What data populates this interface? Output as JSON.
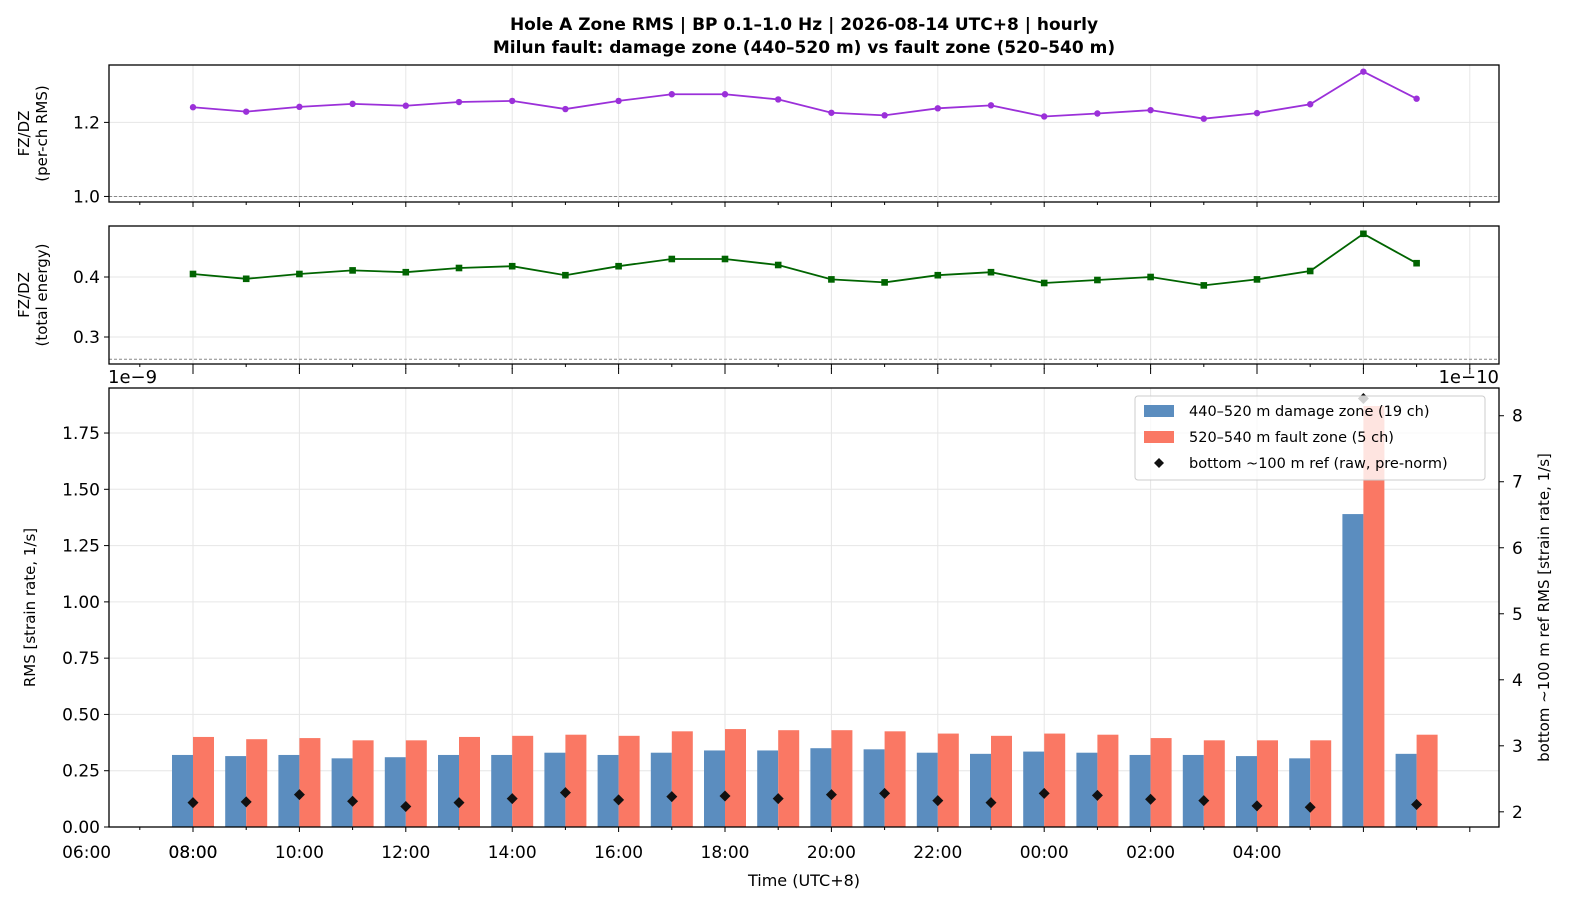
{
  "title": {
    "line1": "Hole A Zone RMS  |  BP 0.1–1.0 Hz  |  2026-08-14 UTC+8  |  hourly",
    "line2": "Milun fault: damage zone (440–520 m) vs fault zone (520–540 m)"
  },
  "chart_data": [
    {
      "type": "line",
      "ylabel": [
        "FZ/DZ",
        "(per-ch RMS)"
      ],
      "ylim": [
        0.985,
        1.355
      ],
      "yticks": [
        1.0,
        1.2
      ],
      "ytick_labels": [
        "1.0",
        "1.2"
      ],
      "reference_line": 1.0,
      "color": "#9b30d9",
      "marker": "circle",
      "x": [
        "08:00",
        "09:00",
        "10:00",
        "11:00",
        "12:00",
        "13:00",
        "14:00",
        "15:00",
        "16:00",
        "17:00",
        "18:00",
        "19:00",
        "20:00",
        "21:00",
        "22:00",
        "23:00",
        "00:00",
        "01:00",
        "02:00",
        "03:00",
        "04:00",
        "05:00",
        "06:00",
        "07:00"
      ],
      "values": [
        1.241,
        1.229,
        1.242,
        1.25,
        1.245,
        1.255,
        1.258,
        1.236,
        1.258,
        1.276,
        1.276,
        1.262,
        1.226,
        1.219,
        1.238,
        1.246,
        1.216,
        1.224,
        1.233,
        1.21,
        1.225,
        1.249,
        1.337,
        1.264
      ]
    },
    {
      "type": "line",
      "ylabel": [
        "FZ/DZ",
        "(total energy)"
      ],
      "ylim": [
        0.255,
        0.485
      ],
      "yticks": [
        0.3,
        0.4
      ],
      "ytick_labels": [
        "0.3",
        "0.4"
      ],
      "reference_line": 0.263,
      "color": "#006400",
      "marker": "square",
      "x": [
        "08:00",
        "09:00",
        "10:00",
        "11:00",
        "12:00",
        "13:00",
        "14:00",
        "15:00",
        "16:00",
        "17:00",
        "18:00",
        "19:00",
        "20:00",
        "21:00",
        "22:00",
        "23:00",
        "00:00",
        "01:00",
        "02:00",
        "03:00",
        "04:00",
        "05:00",
        "06:00",
        "07:00"
      ],
      "values": [
        0.405,
        0.397,
        0.405,
        0.411,
        0.408,
        0.415,
        0.418,
        0.403,
        0.418,
        0.43,
        0.43,
        0.42,
        0.396,
        0.391,
        0.403,
        0.408,
        0.39,
        0.395,
        0.4,
        0.386,
        0.396,
        0.41,
        0.472,
        0.423
      ]
    },
    {
      "type": "bar",
      "xlabel": "Time (UTC+8)",
      "ylabel": "RMS  [strain rate, 1/s]",
      "ylabel_right": "bottom ~100 m ref RMS  [strain rate, 1/s]",
      "offset_left": "1e−9",
      "offset_right": "1e−10",
      "ylim": [
        0,
        1.95
      ],
      "ylim_right": [
        1.77,
        8.42
      ],
      "yticks": [
        0,
        0.25,
        0.5,
        0.75,
        1.0,
        1.25,
        1.5,
        1.75
      ],
      "ytick_labels": [
        "0.00",
        "0.25",
        "0.50",
        "0.75",
        "1.00",
        "1.25",
        "1.50",
        "1.75"
      ],
      "yticks_right": [
        2,
        3,
        4,
        5,
        6,
        7,
        8
      ],
      "ytick_labels_right": [
        "2",
        "3",
        "4",
        "5",
        "6",
        "7",
        "8"
      ],
      "xlim": [
        "06:25",
        "08:25"
      ],
      "xticks": [
        "08:00",
        "10:00",
        "12:00",
        "14:00",
        "16:00",
        "18:00",
        "20:00",
        "22:00",
        "00:00",
        "02:00",
        "04:00",
        "06:00",
        "08:00"
      ],
      "categories": [
        "08:00",
        "09:00",
        "10:00",
        "11:00",
        "12:00",
        "13:00",
        "14:00",
        "15:00",
        "16:00",
        "17:00",
        "18:00",
        "19:00",
        "20:00",
        "21:00",
        "22:00",
        "23:00",
        "00:00",
        "01:00",
        "02:00",
        "03:00",
        "04:00",
        "05:00",
        "06:00",
        "07:00"
      ],
      "series": [
        {
          "name": "440–520 m  damage zone (19 ch)",
          "color": "#5b8dbf",
          "values": [
            0.32,
            0.315,
            0.32,
            0.305,
            0.31,
            0.32,
            0.32,
            0.33,
            0.32,
            0.33,
            0.34,
            0.34,
            0.35,
            0.345,
            0.33,
            0.325,
            0.335,
            0.33,
            0.32,
            0.32,
            0.315,
            0.305,
            1.39,
            0.325
          ]
        },
        {
          "name": "520–540 m  fault zone (5 ch)",
          "color": "#fa7864",
          "values": [
            0.4,
            0.39,
            0.395,
            0.385,
            0.385,
            0.4,
            0.405,
            0.41,
            0.405,
            0.425,
            0.435,
            0.43,
            0.43,
            0.425,
            0.415,
            0.405,
            0.415,
            0.41,
            0.395,
            0.385,
            0.385,
            0.385,
            1.87,
            0.41
          ]
        },
        {
          "name": "bottom ~100 m ref (raw, pre-norm)",
          "color": "#111111",
          "axis": "right",
          "marker": "diamond",
          "values": [
            2.14,
            2.15,
            2.26,
            2.16,
            2.08,
            2.14,
            2.2,
            2.29,
            2.18,
            2.23,
            2.24,
            2.2,
            2.26,
            2.28,
            2.17,
            2.14,
            2.28,
            2.25,
            2.19,
            2.17,
            2.09,
            2.07,
            8.26,
            2.11
          ]
        }
      ],
      "legend_position": "upper right"
    }
  ]
}
